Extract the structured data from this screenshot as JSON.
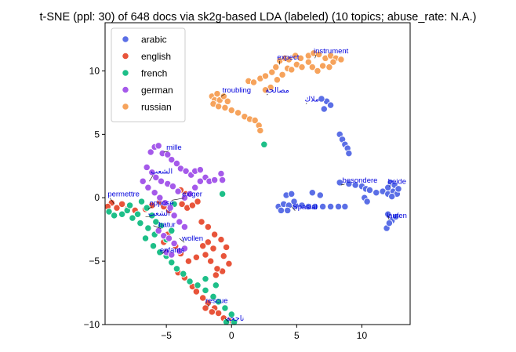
{
  "chart_data": {
    "type": "scatter",
    "title": "t-SNE (ppl: 30) of 648 docs via sk2g-based LDA (labeled) (10 topics; abuse_rate: N.A.)",
    "xlabel": "",
    "ylabel": "",
    "xlim": [
      -9.7,
      13.7
    ],
    "ylim": [
      -10,
      13.8
    ],
    "xticks": [
      -5,
      0,
      5,
      10
    ],
    "yticks": [
      -10,
      -5,
      0,
      5,
      10
    ],
    "tick_labels_x": [
      "−5",
      "0",
      "5",
      "10"
    ],
    "tick_labels_y": [
      "−10",
      "−5",
      "0",
      "5",
      "10"
    ],
    "grid": false,
    "legend_position": "top-left",
    "series": [
      {
        "name": "arabic",
        "color": "#5b6fe6",
        "points": [
          [
            7.3,
            7.6
          ],
          [
            7.6,
            7.3
          ],
          [
            6.9,
            7.8
          ],
          [
            7.1,
            7.0
          ],
          [
            8.3,
            5.0
          ],
          [
            8.5,
            4.6
          ],
          [
            8.7,
            4.2
          ],
          [
            8.9,
            3.9
          ],
          [
            9.0,
            3.5
          ],
          [
            8.3,
            1.2
          ],
          [
            9.0,
            1.1
          ],
          [
            9.5,
            1.0
          ],
          [
            10.0,
            0.9
          ],
          [
            10.3,
            0.7
          ],
          [
            10.6,
            0.6
          ],
          [
            11.1,
            0.4
          ],
          [
            11.6,
            0.5
          ],
          [
            12.0,
            0.3
          ],
          [
            12.4,
            0.5
          ],
          [
            12.7,
            0.3
          ],
          [
            12.2,
            1.2
          ],
          [
            12.5,
            1.0
          ],
          [
            12.0,
            0.8
          ],
          [
            12.8,
            0.7
          ],
          [
            12.3,
            0.1
          ],
          [
            10.2,
            0.0
          ],
          [
            10.4,
            -0.3
          ],
          [
            12.0,
            -1.3
          ],
          [
            12.3,
            -1.8
          ],
          [
            11.9,
            -2.4
          ],
          [
            12.6,
            -1.5
          ],
          [
            12.1,
            -2.0
          ],
          [
            3.6,
            -0.7
          ],
          [
            4.0,
            -0.5
          ],
          [
            4.4,
            -0.6
          ],
          [
            4.9,
            -0.6
          ],
          [
            5.4,
            -0.6
          ],
          [
            5.9,
            -0.7
          ],
          [
            6.4,
            -0.7
          ],
          [
            7.0,
            -0.7
          ],
          [
            7.6,
            -0.7
          ],
          [
            8.2,
            -0.7
          ],
          [
            8.7,
            -0.7
          ],
          [
            4.2,
            0.2
          ],
          [
            4.6,
            0.3
          ],
          [
            4.8,
            -0.3
          ],
          [
            4.3,
            -1.0
          ],
          [
            3.8,
            -1.0
          ],
          [
            6.2,
            0.4
          ],
          [
            6.8,
            0.2
          ]
        ]
      },
      {
        "name": "english",
        "color": "#e8543a",
        "points": [
          [
            -9.2,
            -0.4
          ],
          [
            -9.5,
            -0.7
          ],
          [
            -8.8,
            -0.8
          ],
          [
            -8.4,
            -0.5
          ],
          [
            -8.0,
            -0.9
          ],
          [
            -7.4,
            -1.0
          ],
          [
            -6.6,
            -0.9
          ],
          [
            -6.1,
            -0.6
          ],
          [
            -5.5,
            -0.3
          ],
          [
            -5.2,
            -0.7
          ],
          [
            -4.8,
            -1.0
          ],
          [
            -3.9,
            0.6
          ],
          [
            -3.5,
            0.3
          ],
          [
            -3.8,
            -0.5
          ],
          [
            -3.4,
            -0.8
          ],
          [
            -3.0,
            -0.6
          ],
          [
            -2.6,
            -0.3
          ],
          [
            -2.3,
            -1.9
          ],
          [
            -1.8,
            -2.3
          ],
          [
            -1.3,
            -2.9
          ],
          [
            -0.8,
            -3.3
          ],
          [
            -0.4,
            -3.9
          ],
          [
            -0.6,
            -4.6
          ],
          [
            -0.2,
            -5.2
          ],
          [
            -0.7,
            -5.8
          ],
          [
            -1.2,
            -6.1
          ],
          [
            -1.8,
            -3.5
          ],
          [
            -1.4,
            -4.0
          ],
          [
            -2.2,
            -3.8
          ],
          [
            -2.0,
            -4.5
          ],
          [
            -1.6,
            -5.0
          ],
          [
            -1.1,
            -5.6
          ],
          [
            -4.9,
            -2.9
          ],
          [
            -5.2,
            -3.5
          ],
          [
            -4.3,
            -3.8
          ],
          [
            -3.9,
            -4.4
          ],
          [
            -3.3,
            -5.0
          ],
          [
            -2.7,
            -4.7
          ],
          [
            -4.1,
            -5.9
          ],
          [
            -3.6,
            -6.3
          ],
          [
            -3.0,
            -7.0
          ],
          [
            -2.7,
            -7.4
          ],
          [
            -2.2,
            -7.9
          ],
          [
            -1.8,
            -8.3
          ],
          [
            -1.3,
            -8.7
          ],
          [
            -1.0,
            -9.1
          ],
          [
            -0.6,
            -9.5
          ],
          [
            -0.2,
            -9.7
          ],
          [
            -2.0,
            -8.7
          ],
          [
            -1.5,
            -9.0
          ]
        ]
      },
      {
        "name": "french",
        "color": "#1dbf88",
        "points": [
          [
            -9.4,
            -1.1
          ],
          [
            -9.0,
            -1.4
          ],
          [
            -8.4,
            -1.3
          ],
          [
            -8.0,
            -1.0
          ],
          [
            -7.6,
            -1.6
          ],
          [
            -7.2,
            -1.3
          ],
          [
            -6.9,
            -0.3
          ],
          [
            -6.5,
            -0.8
          ],
          [
            -6.1,
            -1.4
          ],
          [
            -5.8,
            -1.9
          ],
          [
            -5.4,
            -2.2
          ],
          [
            -7.0,
            -2.0
          ],
          [
            -6.4,
            -2.4
          ],
          [
            -5.9,
            -2.9
          ],
          [
            -6.6,
            -3.2
          ],
          [
            -6.0,
            -3.8
          ],
          [
            -5.5,
            -4.3
          ],
          [
            -5.0,
            -4.6
          ],
          [
            -4.6,
            -5.1
          ],
          [
            -4.2,
            -5.6
          ],
          [
            -3.7,
            -6.0
          ],
          [
            -3.2,
            -6.6
          ],
          [
            -2.6,
            -6.9
          ],
          [
            -2.0,
            -7.3
          ],
          [
            -1.4,
            -7.8
          ],
          [
            -1.0,
            -8.2
          ],
          [
            -0.5,
            -8.7
          ],
          [
            0.0,
            -9.2
          ],
          [
            -0.4,
            -9.8
          ],
          [
            0.2,
            -10.0
          ],
          [
            -2.0,
            -6.4
          ],
          [
            -1.2,
            -6.9
          ],
          [
            2.5,
            4.2
          ],
          [
            -0.7,
            0.3
          ],
          [
            -4.4,
            -0.5
          ],
          [
            -7.8,
            -0.6
          ],
          [
            -5.0,
            -3.3
          ],
          [
            -4.6,
            -2.6
          ]
        ]
      },
      {
        "name": "german",
        "color": "#a55aea",
        "points": [
          [
            -6.2,
            3.6
          ],
          [
            -5.9,
            4.0
          ],
          [
            -5.6,
            4.1
          ],
          [
            -5.3,
            3.5
          ],
          [
            -4.9,
            3.4
          ],
          [
            -4.6,
            3.0
          ],
          [
            -4.2,
            2.7
          ],
          [
            -3.9,
            2.3
          ],
          [
            -3.5,
            2.1
          ],
          [
            -3.1,
            1.8
          ],
          [
            -2.8,
            2.1
          ],
          [
            -2.4,
            2.2
          ],
          [
            -2.0,
            1.6
          ],
          [
            -1.7,
            1.3
          ],
          [
            -1.3,
            1.4
          ],
          [
            -0.8,
            1.9
          ],
          [
            -0.7,
            1.4
          ],
          [
            -6.5,
            2.4
          ],
          [
            -6.1,
            2.0
          ],
          [
            -5.8,
            1.6
          ],
          [
            -5.4,
            1.3
          ],
          [
            -4.9,
            1.1
          ],
          [
            -4.5,
            0.9
          ],
          [
            -4.1,
            0.5
          ],
          [
            -3.6,
            0.0
          ],
          [
            -3.2,
            0.3
          ],
          [
            -2.8,
            0.8
          ],
          [
            -2.4,
            1.3
          ],
          [
            -6.8,
            1.3
          ],
          [
            -6.4,
            0.8
          ],
          [
            -5.9,
            0.4
          ],
          [
            -5.5,
            0.0
          ],
          [
            -5.1,
            -0.4
          ],
          [
            -4.7,
            -0.8
          ],
          [
            -4.4,
            -1.4
          ],
          [
            -4.0,
            -1.9
          ],
          [
            -3.6,
            -2.3
          ],
          [
            -5.6,
            -2.6
          ],
          [
            -5.2,
            -3.0
          ],
          [
            -4.8,
            -3.2
          ],
          [
            -4.4,
            -3.6
          ],
          [
            -4.0,
            -4.2
          ],
          [
            -3.6,
            -4.0
          ],
          [
            -5.0,
            -4.3
          ],
          [
            -4.6,
            -4.5
          ]
        ]
      },
      {
        "name": "russian",
        "color": "#f6a35c",
        "points": [
          [
            -1.5,
            8.0
          ],
          [
            -1.3,
            7.7
          ],
          [
            -1.1,
            8.2
          ],
          [
            -0.9,
            7.7
          ],
          [
            -0.6,
            8.0
          ],
          [
            -0.3,
            7.6
          ],
          [
            -1.4,
            7.4
          ],
          [
            -1.0,
            7.2
          ],
          [
            -0.5,
            7.1
          ],
          [
            0.0,
            6.9
          ],
          [
            0.5,
            6.7
          ],
          [
            1.0,
            6.4
          ],
          [
            1.4,
            6.2
          ],
          [
            1.8,
            6.1
          ],
          [
            2.1,
            5.7
          ],
          [
            2.2,
            5.3
          ],
          [
            1.3,
            9.2
          ],
          [
            1.7,
            9.1
          ],
          [
            2.2,
            9.4
          ],
          [
            2.6,
            9.6
          ],
          [
            3.1,
            9.9
          ],
          [
            3.4,
            10.3
          ],
          [
            3.7,
            10.8
          ],
          [
            4.1,
            11.0
          ],
          [
            4.4,
            10.9
          ],
          [
            4.9,
            11.2
          ],
          [
            5.3,
            11.0
          ],
          [
            5.9,
            11.2
          ],
          [
            6.3,
            11.4
          ],
          [
            6.7,
            11.3
          ],
          [
            7.2,
            11.0
          ],
          [
            7.6,
            11.2
          ],
          [
            8.0,
            11.0
          ],
          [
            8.4,
            10.9
          ],
          [
            3.5,
            9.3
          ],
          [
            3.9,
            9.7
          ],
          [
            4.3,
            10.2
          ],
          [
            4.6,
            10.1
          ],
          [
            5.0,
            10.5
          ],
          [
            5.4,
            10.3
          ],
          [
            5.9,
            10.7
          ],
          [
            6.2,
            10.3
          ],
          [
            6.6,
            10.0
          ],
          [
            7.0,
            10.4
          ],
          [
            7.5,
            10.3
          ],
          [
            7.8,
            10.7
          ],
          [
            3.0,
            8.7
          ],
          [
            2.6,
            8.5
          ]
        ]
      }
    ],
    "annotations": [
      {
        "text": "expect",
        "x": 3.5,
        "y": 10.9,
        "ax": 3.7,
        "ay": 10.5
      },
      {
        "text": "instrument",
        "x": 6.3,
        "y": 11.4,
        "ax": 6.4,
        "ay": 11.0
      },
      {
        "text": "troubling",
        "x": -0.7,
        "y": 8.3,
        "ax": -0.8,
        "ay": 8.0
      },
      {
        "text": "مصالحة",
        "x": 2.6,
        "y": 8.3,
        "ax": 2.7,
        "ay": 8.1
      },
      {
        "text": "ملاك",
        "x": 5.6,
        "y": 7.6,
        "ax": 5.7,
        "ay": 7.4
      },
      {
        "text": "mille",
        "x": -5.0,
        "y": 3.8,
        "ax": -5.2,
        "ay": 3.6
      },
      {
        "text": "الشعب",
        "x": -6.2,
        "y": 1.9,
        "ax": -6.3,
        "ay": 1.3
      },
      {
        "text": "permettre",
        "x": -9.5,
        "y": 0.1,
        "ax": -9.0,
        "ay": -0.5
      },
      {
        "text": "exiger",
        "x": -3.8,
        "y": 0.1,
        "ax": -4.6,
        "ay": -0.2
      },
      {
        "text": "oppose",
        "x": -6.3,
        "y": -0.6,
        "ax": -6.4,
        "ay": -0.9
      },
      {
        "text": "الشعب",
        "x": -6.4,
        "y": -1.4,
        "ax": -6.6,
        "ay": -1.5
      },
      {
        "text": "batur",
        "x": -5.6,
        "y": -2.3,
        "ax": -6.0,
        "ay": -2.2
      },
      {
        "text": "wollen",
        "x": -3.8,
        "y": -3.4,
        "ax": -4.0,
        "ay": -3.2
      },
      {
        "text": "enfants",
        "x": -5.5,
        "y": -4.3,
        "ax": -5.0,
        "ay": -4.1
      },
      {
        "text": "besondere",
        "x": 8.5,
        "y": 1.2,
        "ax": 8.4,
        "ay": 1.0
      },
      {
        "text": "beide",
        "x": 12.0,
        "y": 1.1,
        "ax": 12.1,
        "ay": 0.9
      },
      {
        "text": "Spasial",
        "x": 4.7,
        "y": -0.9,
        "ax": 4.6,
        "ay": -0.7
      },
      {
        "text": "laufen",
        "x": 11.9,
        "y": -1.6,
        "ax": 12.0,
        "ay": -1.4
      },
      {
        "text": "rescue",
        "x": -2.0,
        "y": -8.3,
        "ax": -1.8,
        "ay": -8.6
      },
      {
        "text": "ناجحة",
        "x": -0.4,
        "y": -9.7,
        "ax": -0.5,
        "ay": -9.5
      }
    ]
  }
}
